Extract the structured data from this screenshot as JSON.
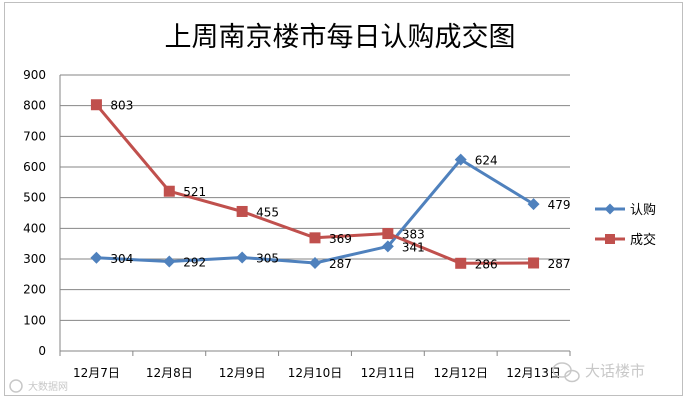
{
  "chart_data": {
    "type": "line",
    "title": "上周南京楼市每日认购成交图",
    "categories": [
      "12月7日",
      "12月8日",
      "12月9日",
      "12月10日",
      "12月11日",
      "12月12日",
      "12月13日"
    ],
    "series": [
      {
        "name": "认购",
        "color": "#4f81bd",
        "marker": "diamond",
        "values": [
          304,
          292,
          305,
          287,
          341,
          624,
          479
        ]
      },
      {
        "name": "成交",
        "color": "#c0504d",
        "marker": "square",
        "values": [
          803,
          521,
          455,
          369,
          383,
          286,
          287
        ]
      }
    ],
    "ylim": [
      0,
      900
    ],
    "yticks": [
      "0",
      "100",
      "200",
      "300",
      "400",
      "500",
      "600",
      "700",
      "800",
      "900"
    ],
    "grid": true,
    "legend": "right"
  },
  "watermarks": {
    "bottom_left": "大数据网",
    "bottom_right": "大话楼市"
  }
}
